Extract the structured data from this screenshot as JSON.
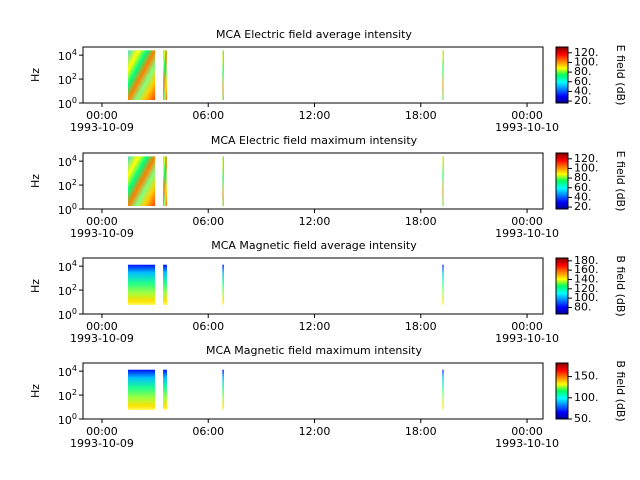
{
  "chart_data": [
    {
      "type": "spectrogram",
      "title": "MCA  Electric field average intensity",
      "ylabel": "Hz",
      "zlabel": "E field (dB)",
      "xlim": [
        -1.07,
        24.9
      ],
      "xticks": [
        {
          "value": 0,
          "label": "00:00",
          "date": "1993-10-09"
        },
        {
          "value": 6,
          "label": "06:00"
        },
        {
          "value": 12,
          "label": "12:00"
        },
        {
          "value": 18,
          "label": "18:00"
        },
        {
          "value": 24,
          "label": "00:00",
          "date": "1993-10-10"
        }
      ],
      "log_y": true,
      "ylim": [
        1,
        48000
      ],
      "yticks": [
        {
          "value": 1,
          "label": "10^0"
        },
        {
          "value": 100,
          "label": "10^2"
        },
        {
          "value": 10000,
          "label": "10^4"
        }
      ],
      "zlim": [
        16,
        132
      ],
      "zticks": [
        {
          "value": 20,
          "label": "20."
        },
        {
          "value": 40,
          "label": "40."
        },
        {
          "value": 60,
          "label": "60."
        },
        {
          "value": 80,
          "label": "80."
        },
        {
          "value": 100,
          "label": "100."
        },
        {
          "value": 120,
          "label": "120."
        }
      ],
      "intervals": [
        [
          1.47,
          3.0
        ],
        [
          3.45,
          3.67
        ],
        [
          6.8,
          6.88
        ],
        [
          19.22,
          19.28
        ]
      ]
    },
    {
      "type": "spectrogram",
      "title": "MCA  Electric field maximum intensity",
      "ylabel": "Hz",
      "zlabel": "E field (dB)",
      "xlim": [
        -1.07,
        24.9
      ],
      "xticks": [
        {
          "value": 0,
          "label": "00:00",
          "date": "1993-10-09"
        },
        {
          "value": 6,
          "label": "06:00"
        },
        {
          "value": 12,
          "label": "12:00"
        },
        {
          "value": 18,
          "label": "18:00"
        },
        {
          "value": 24,
          "label": "00:00",
          "date": "1993-10-10"
        }
      ],
      "log_y": true,
      "ylim": [
        1,
        48000
      ],
      "yticks": [
        {
          "value": 1,
          "label": "10^0"
        },
        {
          "value": 100,
          "label": "10^2"
        },
        {
          "value": 10000,
          "label": "10^4"
        }
      ],
      "zlim": [
        16,
        132
      ],
      "zticks": [
        {
          "value": 20,
          "label": "20."
        },
        {
          "value": 40,
          "label": "40."
        },
        {
          "value": 60,
          "label": "60."
        },
        {
          "value": 80,
          "label": "80."
        },
        {
          "value": 100,
          "label": "100."
        },
        {
          "value": 120,
          "label": "120."
        }
      ],
      "intervals": [
        [
          1.47,
          3.0
        ],
        [
          3.45,
          3.67
        ],
        [
          6.8,
          6.88
        ],
        [
          19.22,
          19.28
        ]
      ]
    },
    {
      "type": "spectrogram",
      "title": "MCA  Magnetic field average intensity",
      "ylabel": "Hz",
      "zlabel": "B field (dB)",
      "xlim": [
        -1.07,
        24.9
      ],
      "xticks": [
        {
          "value": 0,
          "label": "00:00",
          "date": "1993-10-09"
        },
        {
          "value": 6,
          "label": "06:00"
        },
        {
          "value": 12,
          "label": "12:00"
        },
        {
          "value": 18,
          "label": "18:00"
        },
        {
          "value": 24,
          "label": "00:00",
          "date": "1993-10-10"
        }
      ],
      "log_y": true,
      "ylim": [
        1,
        48000
      ],
      "yticks": [
        {
          "value": 1,
          "label": "10^0"
        },
        {
          "value": 100,
          "label": "10^2"
        },
        {
          "value": 10000,
          "label": "10^4"
        }
      ],
      "zlim": [
        66,
        186
      ],
      "zticks": [
        {
          "value": 80,
          "label": "80."
        },
        {
          "value": 100,
          "label": "100."
        },
        {
          "value": 120,
          "label": "120."
        },
        {
          "value": 140,
          "label": "140."
        },
        {
          "value": 160,
          "label": "160."
        },
        {
          "value": 180,
          "label": "180."
        }
      ],
      "intervals": [
        [
          1.47,
          3.0
        ],
        [
          3.45,
          3.67
        ],
        [
          6.8,
          6.88
        ],
        [
          19.22,
          19.28
        ]
      ]
    },
    {
      "type": "spectrogram",
      "title": "MCA  Magnetic field maximum intensity",
      "ylabel": "Hz",
      "zlabel": "B field (dB)",
      "xlim": [
        -1.07,
        24.9
      ],
      "xticks": [
        {
          "value": 0,
          "label": "00:00",
          "date": "1993-10-09"
        },
        {
          "value": 6,
          "label": "06:00"
        },
        {
          "value": 12,
          "label": "12:00"
        },
        {
          "value": 18,
          "label": "18:00"
        },
        {
          "value": 24,
          "label": "00:00",
          "date": "1993-10-10"
        }
      ],
      "log_y": true,
      "ylim": [
        1,
        48000
      ],
      "yticks": [
        {
          "value": 1,
          "label": "10^0"
        },
        {
          "value": 100,
          "label": "10^2"
        },
        {
          "value": 10000,
          "label": "10^4"
        }
      ],
      "zlim": [
        50,
        182
      ],
      "zticks": [
        {
          "value": 50,
          "label": "50."
        },
        {
          "value": 100,
          "label": "100."
        },
        {
          "value": 150,
          "label": "150."
        }
      ],
      "intervals": [
        [
          1.47,
          3.0
        ],
        [
          3.45,
          3.67
        ],
        [
          6.8,
          6.88
        ],
        [
          19.22,
          19.28
        ]
      ]
    }
  ]
}
